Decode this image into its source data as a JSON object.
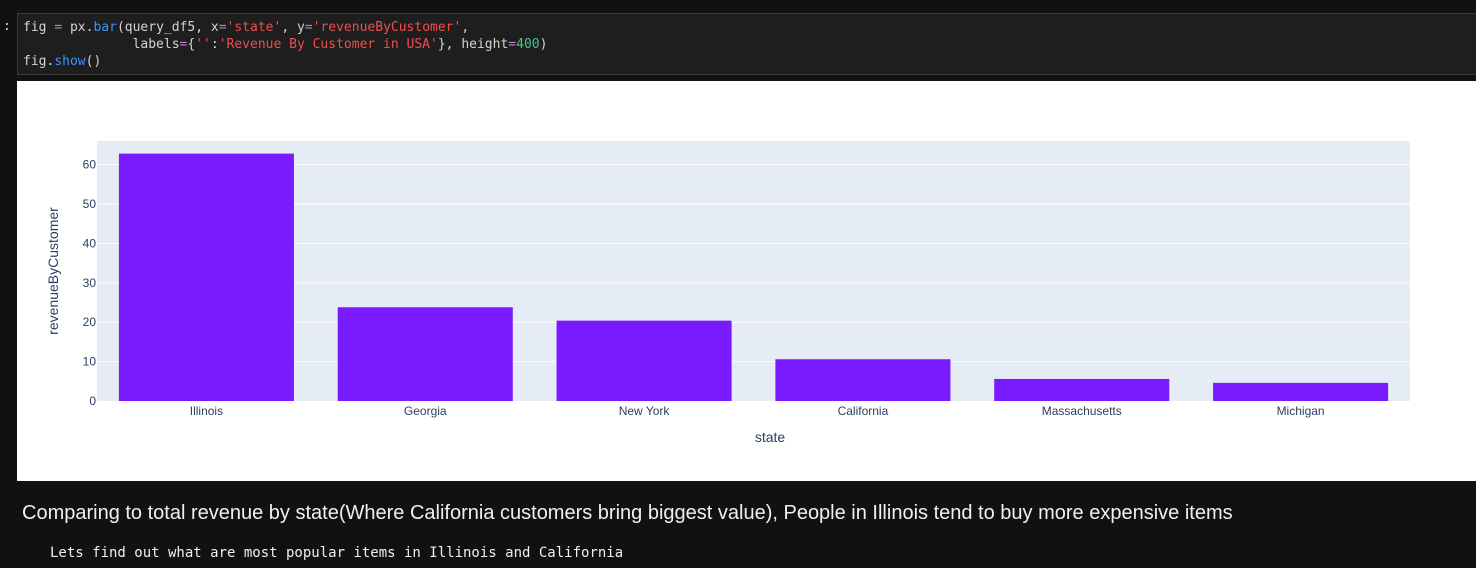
{
  "cell": {
    "prompt": ":",
    "line1": {
      "p1": "fig ",
      "op1": "=",
      "p2": " px.",
      "fn1": "bar",
      "p3": "(query_df5, x",
      "op2": "=",
      "s1": "'state'",
      "p4": ", y",
      "op3": "=",
      "s2": "'revenueByCustomer'",
      "p5": ","
    },
    "line2": {
      "indent": "              ",
      "p1": "labels",
      "op1": "=",
      "p2": "{",
      "s1": "''",
      "p3": ":",
      "s2": "'Revenue By Customer in USA'",
      "p4": "}, height",
      "op2": "=",
      "n1": "400",
      "p5": ")"
    },
    "line3": {
      "p1": "fig.",
      "fn1": "show",
      "p2": "()"
    }
  },
  "chart_data": {
    "type": "bar",
    "categories": [
      "Illinois",
      "Georgia",
      "New York",
      "California",
      "Massachusetts",
      "Michigan"
    ],
    "values": [
      62.8,
      23.8,
      20.4,
      10.6,
      5.6,
      4.6
    ],
    "xlabel": "state",
    "ylabel": "revenueByCustomer",
    "ylim": [
      0,
      66
    ],
    "yticks": [
      0,
      10,
      20,
      30,
      40,
      50,
      60
    ],
    "grid": true,
    "bar_color": "#7a1bff",
    "plot_bg": "#e5ecf6"
  },
  "markdown": {
    "heading": "Comparing to total revenue by state(Where California customers bring biggest value), People in Illinois tend to buy more expensive items",
    "code_line": "Lets find out what are most popular items in Illinois and California"
  }
}
